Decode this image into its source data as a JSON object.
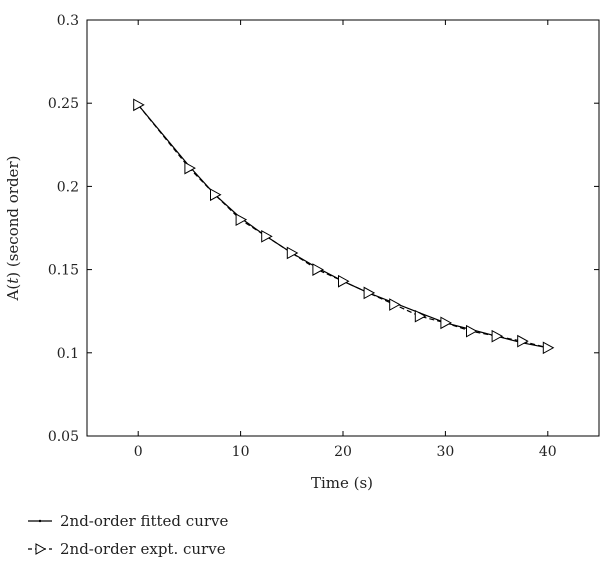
{
  "chart_data": {
    "type": "line",
    "title": "",
    "xlabel": "Time (s)",
    "ylabel_prefix": "A(",
    "ylabel_var": "t",
    "ylabel_suffix": ") (second order)",
    "xlim": [
      -5,
      45
    ],
    "ylim": [
      0.05,
      0.3
    ],
    "x_ticks": [
      0,
      10,
      20,
      30,
      40
    ],
    "x_tick_labels": [
      "0",
      "10",
      "20",
      "30",
      "40"
    ],
    "y_ticks": [
      0.05,
      0.1,
      0.15,
      0.2,
      0.25,
      0.3
    ],
    "y_tick_labels": [
      "0.05",
      "0.1",
      "0.15",
      "0.2",
      "0.25",
      "0.3"
    ],
    "grid": false,
    "legend_position": "bottom-left-outside",
    "series": [
      {
        "name": "2nd-order fitted curve",
        "style": "solid",
        "marker": "none",
        "color": "#000000",
        "x": [
          0,
          5,
          7.5,
          10,
          12.5,
          15,
          17.5,
          20,
          22.5,
          25,
          27.5,
          30,
          32.5,
          35,
          37.5,
          40
        ],
        "y": [
          0.249,
          0.212,
          0.195,
          0.181,
          0.17,
          0.16,
          0.151,
          0.143,
          0.136,
          0.13,
          0.124,
          0.118,
          0.114,
          0.11,
          0.106,
          0.103
        ]
      },
      {
        "name": "2nd-order expt. curve",
        "style": "dashed",
        "marker": "triangle-right",
        "color": "#000000",
        "x": [
          0,
          5,
          7.5,
          10,
          12.5,
          15,
          17.5,
          20,
          22.5,
          25,
          27.5,
          30,
          32.5,
          35,
          37.5,
          40
        ],
        "y": [
          0.249,
          0.211,
          0.195,
          0.18,
          0.17,
          0.16,
          0.15,
          0.143,
          0.136,
          0.129,
          0.122,
          0.118,
          0.113,
          0.11,
          0.107,
          0.103
        ]
      }
    ]
  }
}
